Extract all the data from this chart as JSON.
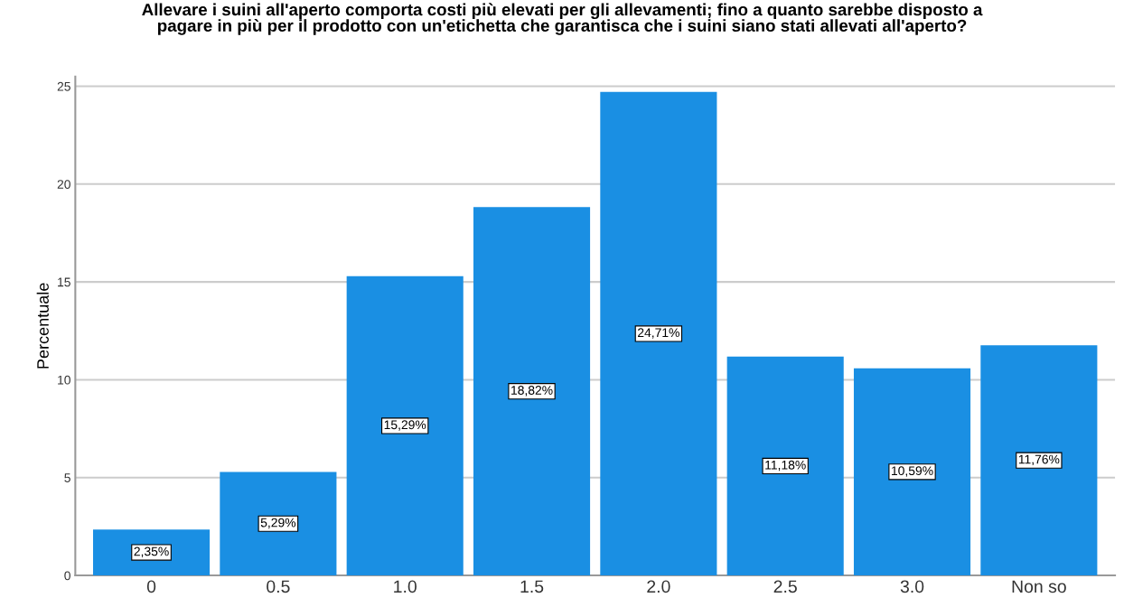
{
  "chart_data": {
    "type": "bar",
    "title": "Allevare i suini all'aperto comporta costi più elevati per gli allevamenti; fino a quanto sarebbe disposto a\npagare in più per il prodotto con un'etichetta che garantisca che i suini siano stati allevati all'aperto?",
    "ylabel": "Percentuale",
    "categories": [
      "0",
      "0.5",
      "1.0",
      "1.5",
      "2.0",
      "2.5",
      "3.0",
      "Non so"
    ],
    "values": [
      2.35,
      5.29,
      15.29,
      18.82,
      24.71,
      11.18,
      10.59,
      11.76
    ],
    "value_labels": [
      "2,35%",
      "5,29%",
      "15,29%",
      "18,82%",
      "24,71%",
      "11,18%",
      "10,59%",
      "11,76%"
    ],
    "color": "#1a8fe3",
    "ylim": [
      0,
      25.5
    ],
    "yticks": [
      0,
      5,
      10,
      15,
      20,
      25
    ],
    "grid": "y"
  }
}
